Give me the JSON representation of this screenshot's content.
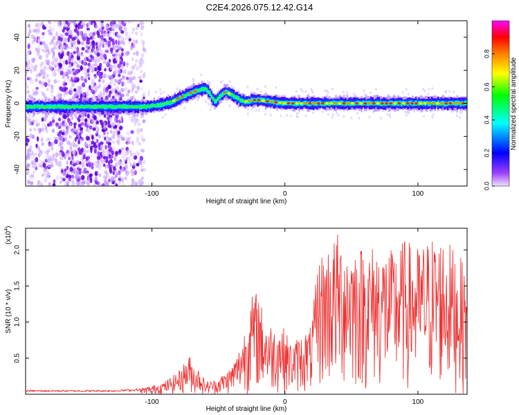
{
  "title": "C2E4.2026.075.12.42.G14",
  "chart_data": [
    {
      "type": "heatmap",
      "panel": "spectrogram",
      "xlabel": "Height of straight line (km)",
      "ylabel": "Frequency (Hz)",
      "xlim": [
        -195,
        137
      ],
      "ylim": [
        -50,
        50
      ],
      "xticks": [
        -100,
        0,
        100
      ],
      "xtick_labels": [
        "-100",
        "0",
        "100"
      ],
      "yticks": [
        -40,
        -20,
        0,
        20,
        40
      ],
      "ytick_labels": [
        "-40",
        "-20",
        "0",
        "20",
        "40"
      ],
      "colorbar": {
        "label": "Normalized spectral amplitude",
        "range": [
          0,
          1
        ],
        "ticks": [
          0.0,
          0.2,
          0.4,
          0.6,
          0.8
        ],
        "tick_labels": [
          "0.0",
          "0.2",
          "0.4",
          "0.6",
          "0.8"
        ],
        "colormap": [
          "#d8b8ff",
          "#8000ff",
          "#0000ff",
          "#00ffff",
          "#00ff00",
          "#ffff00",
          "#ff8000",
          "#ff0000",
          "#ff00ff"
        ]
      },
      "ridge": {
        "description": "dominant frequency track vs height",
        "x": [
          -195,
          -180,
          -160,
          -140,
          -120,
          -105,
          -95,
          -85,
          -78,
          -72,
          -66,
          -60,
          -57,
          -55,
          -53,
          -50,
          -46,
          -42,
          -38,
          -34,
          -30,
          -25,
          -20,
          -10,
          0,
          20,
          40,
          60,
          80,
          100,
          120,
          137
        ],
        "y": [
          -2,
          -2,
          -2,
          -2,
          -2,
          -2,
          -1,
          1,
          4,
          6,
          8,
          9,
          6,
          3,
          1,
          4,
          7,
          6,
          4,
          2,
          1,
          2,
          2,
          1,
          0,
          0,
          0,
          0,
          0,
          0,
          0,
          0
        ]
      },
      "noise_region_x": [
        -195,
        -105
      ]
    },
    {
      "type": "line",
      "panel": "snr",
      "xlabel": "Height of straight line (km)",
      "ylabel": "SNR (10 * v/v)",
      "y_multiplier_label": "(x10",
      "y_multiplier_exp": "4",
      "xlim": [
        -195,
        137
      ],
      "ylim": [
        0,
        2.3
      ],
      "xticks": [
        -100,
        0,
        100
      ],
      "xtick_labels": [
        "-100",
        "0",
        "100"
      ],
      "yticks": [
        0.5,
        1.0,
        1.5,
        2.0
      ],
      "ytick_labels": [
        "0.5",
        "1.0",
        "1.5",
        "2.0"
      ],
      "color": "#ee3333",
      "envelope": {
        "description": "approximate upper envelope of the noisy SNR trace",
        "x": [
          -195,
          -130,
          -110,
          -100,
          -90,
          -80,
          -72,
          -68,
          -64,
          -60,
          -52,
          -45,
          -40,
          -35,
          -30,
          -28,
          -24,
          -20,
          -16,
          -12,
          -8,
          -4,
          0,
          5,
          10,
          20,
          25,
          30,
          40,
          50,
          60,
          70,
          80,
          90,
          100,
          110,
          120,
          130,
          137
        ],
        "y": [
          0.06,
          0.06,
          0.08,
          0.12,
          0.18,
          0.32,
          0.55,
          0.4,
          0.35,
          0.18,
          0.2,
          0.3,
          0.4,
          0.6,
          0.95,
          1.2,
          1.4,
          1.45,
          1.1,
          1.0,
          0.95,
          1.0,
          0.9,
          0.7,
          0.8,
          0.95,
          1.9,
          2.05,
          2.25,
          2.15,
          2.05,
          2.1,
          2.0,
          2.15,
          2.05,
          2.2,
          2.2,
          1.95,
          1.75
        ]
      }
    }
  ]
}
